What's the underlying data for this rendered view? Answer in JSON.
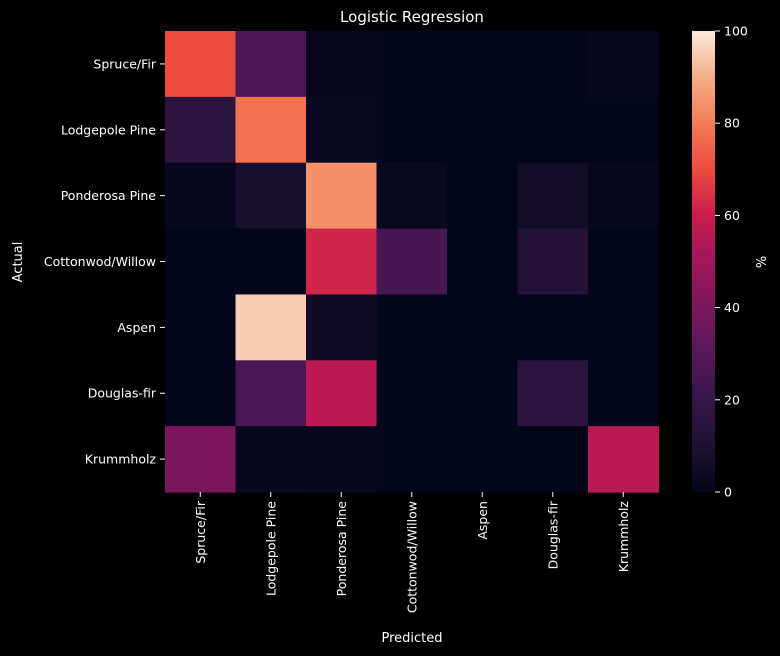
{
  "chart_data": {
    "type": "heatmap",
    "title": "Logistic Regression",
    "xlabel": "Predicted",
    "ylabel": "Actual",
    "x_categories": [
      "Spruce/Fir",
      "Lodgepole Pine",
      "Ponderosa Pine",
      "Cottonwod/Willow",
      "Aspen",
      "Douglas-fir",
      "Krummholz"
    ],
    "y_categories": [
      "Spruce/Fir",
      "Lodgepole Pine",
      "Ponderosa Pine",
      "Cottonwod/Willow",
      "Aspen",
      "Douglas-fir",
      "Krummholz"
    ],
    "values": [
      [
        70,
        27,
        1,
        0,
        0,
        0,
        2
      ],
      [
        16,
        78,
        3,
        0,
        0,
        0,
        0
      ],
      [
        1,
        8,
        84,
        3,
        0,
        6,
        1
      ],
      [
        0,
        0,
        62,
        25,
        0,
        12,
        0
      ],
      [
        0,
        95,
        5,
        0,
        0,
        0,
        0
      ],
      [
        0,
        26,
        56,
        0,
        0,
        16,
        0
      ],
      [
        40,
        2,
        1,
        0,
        0,
        0,
        56
      ]
    ],
    "colorbar": {
      "label": "%",
      "range": [
        0,
        100
      ],
      "ticks": [
        0,
        20,
        40,
        60,
        80,
        100
      ],
      "colormap": "rocket"
    },
    "grid": false
  }
}
